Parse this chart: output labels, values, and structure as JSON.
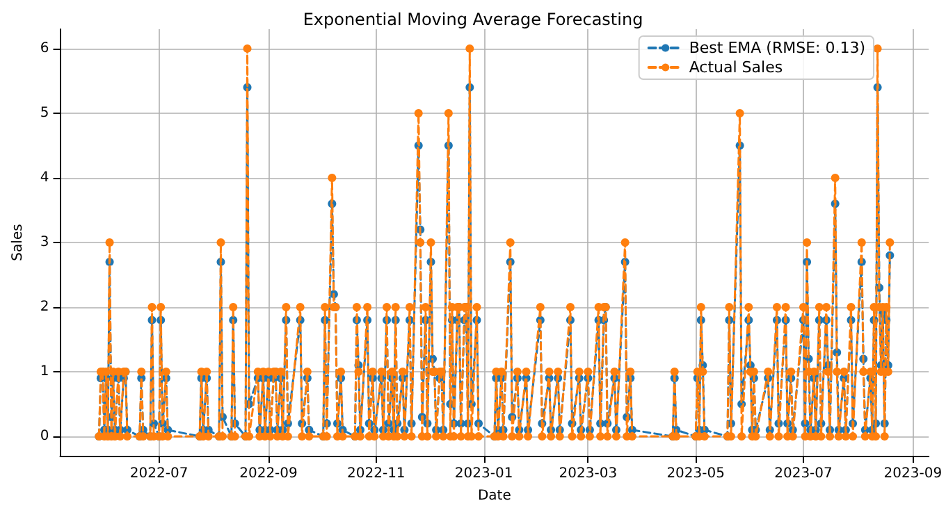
{
  "chart_data": {
    "type": "line",
    "title": "Exponential Moving Average Forecasting",
    "xlabel": "Date",
    "ylabel": "Sales",
    "x": [
      "2022-05-28",
      "2022-05-29",
      "2022-05-30",
      "2022-05-31",
      "2022-06-01",
      "2022-06-02",
      "2022-06-03",
      "2022-06-04",
      "2022-06-05",
      "2022-06-06",
      "2022-06-08",
      "2022-06-09",
      "2022-06-11",
      "2022-06-12",
      "2022-06-13",
      "2022-06-20",
      "2022-06-21",
      "2022-06-22",
      "2022-06-26",
      "2022-06-27",
      "2022-06-28",
      "2022-07-01",
      "2022-07-02",
      "2022-07-03",
      "2022-07-05",
      "2022-07-06",
      "2022-07-24",
      "2022-07-25",
      "2022-07-26",
      "2022-07-28",
      "2022-07-29",
      "2022-08-04",
      "2022-08-05",
      "2022-08-06",
      "2022-08-11",
      "2022-08-12",
      "2022-08-13",
      "2022-08-19",
      "2022-08-20",
      "2022-08-21",
      "2022-08-26",
      "2022-08-27",
      "2022-08-29",
      "2022-08-30",
      "2022-09-01",
      "2022-09-02",
      "2022-09-04",
      "2022-09-05",
      "2022-09-06",
      "2022-09-08",
      "2022-09-09",
      "2022-09-11",
      "2022-09-12",
      "2022-09-19",
      "2022-09-20",
      "2022-09-23",
      "2022-09-24",
      "2022-10-02",
      "2022-10-03",
      "2022-10-04",
      "2022-10-07",
      "2022-10-08",
      "2022-10-09",
      "2022-10-10",
      "2022-10-12",
      "2022-10-13",
      "2022-10-20",
      "2022-10-21",
      "2022-10-22",
      "2022-10-23",
      "2022-10-27",
      "2022-10-28",
      "2022-10-30",
      "2022-10-31",
      "2022-11-04",
      "2022-11-05",
      "2022-11-07",
      "2022-11-08",
      "2022-11-10",
      "2022-11-11",
      "2022-11-12",
      "2022-11-13",
      "2022-11-16",
      "2022-11-17",
      "2022-11-20",
      "2022-11-21",
      "2022-11-25",
      "2022-11-26",
      "2022-11-27",
      "2022-11-29",
      "2022-11-30",
      "2022-12-02",
      "2022-12-03",
      "2022-12-04",
      "2022-12-05",
      "2022-12-07",
      "2022-12-08",
      "2022-12-09",
      "2022-12-12",
      "2022-12-13",
      "2022-12-14",
      "2022-12-15",
      "2022-12-17",
      "2022-12-18",
      "2022-12-19",
      "2022-12-21",
      "2022-12-22",
      "2022-12-23",
      "2022-12-24",
      "2022-12-25",
      "2022-12-28",
      "2022-12-29",
      "2023-01-07",
      "2023-01-08",
      "2023-01-09",
      "2023-01-11",
      "2023-01-12",
      "2023-01-16",
      "2023-01-17",
      "2023-01-20",
      "2023-01-21",
      "2023-01-25",
      "2023-01-26",
      "2023-02-02",
      "2023-02-03",
      "2023-02-07",
      "2023-02-08",
      "2023-02-12",
      "2023-02-13",
      "2023-02-19",
      "2023-02-20",
      "2023-02-24",
      "2023-02-25",
      "2023-03-01",
      "2023-03-02",
      "2023-03-07",
      "2023-03-08",
      "2023-03-10",
      "2023-03-11",
      "2023-03-12",
      "2023-03-16",
      "2023-03-17",
      "2023-03-22",
      "2023-03-23",
      "2023-03-25",
      "2023-03-26",
      "2023-04-18",
      "2023-04-19",
      "2023-04-20",
      "2023-05-01",
      "2023-05-02",
      "2023-05-03",
      "2023-05-04",
      "2023-05-05",
      "2023-05-06",
      "2023-05-19",
      "2023-05-20",
      "2023-05-21",
      "2023-05-26",
      "2023-05-27",
      "2023-05-31",
      "2023-06-01",
      "2023-06-02",
      "2023-06-03",
      "2023-06-04",
      "2023-06-11",
      "2023-06-12",
      "2023-06-16",
      "2023-06-17",
      "2023-06-21",
      "2023-06-22",
      "2023-06-24",
      "2023-06-25",
      "2023-07-01",
      "2023-07-02",
      "2023-07-03",
      "2023-07-04",
      "2023-07-05",
      "2023-07-07",
      "2023-07-08",
      "2023-07-10",
      "2023-07-11",
      "2023-07-14",
      "2023-07-15",
      "2023-07-16",
      "2023-07-19",
      "2023-07-20",
      "2023-07-21",
      "2023-07-24",
      "2023-07-25",
      "2023-07-28",
      "2023-07-29",
      "2023-08-03",
      "2023-08-04",
      "2023-08-05",
      "2023-08-08",
      "2023-08-09",
      "2023-08-10",
      "2023-08-11",
      "2023-08-12",
      "2023-08-13",
      "2023-08-14",
      "2023-08-15",
      "2023-08-16",
      "2023-08-17",
      "2023-08-18",
      "2023-08-19"
    ],
    "series": [
      {
        "name": "Best EMA (RMSE: 0.13)",
        "color": "#1f77b4",
        "values": [
          0,
          0.9,
          1.0,
          0.1,
          0.9,
          0.1,
          2.7,
          0.3,
          0.9,
          0.1,
          0.9,
          0.1,
          0.9,
          1.0,
          0.1,
          0,
          0.9,
          0.1,
          0,
          1.8,
          0.2,
          0,
          1.8,
          0.2,
          0.9,
          0.1,
          0,
          0.9,
          0.1,
          0.9,
          0.1,
          0,
          2.7,
          0.3,
          0,
          1.8,
          0.2,
          0,
          5.4,
          0.5,
          0.9,
          0.1,
          0.9,
          0.1,
          0.9,
          0.1,
          0.9,
          1.0,
          0.1,
          0.9,
          0.1,
          1.8,
          0.2,
          1.8,
          0.2,
          0.9,
          0.1,
          0,
          1.8,
          0.2,
          3.6,
          2.2,
          2.0,
          0.2,
          0.9,
          0.1,
          0,
          1.8,
          1.1,
          0.1,
          1.8,
          0.2,
          0.9,
          0.1,
          0.9,
          0.1,
          1.8,
          0.2,
          0.9,
          0.1,
          1.8,
          0.2,
          0.9,
          0.1,
          1.8,
          0.2,
          4.5,
          3.2,
          0.3,
          1.8,
          0.2,
          2.7,
          1.2,
          1.0,
          0.1,
          0.9,
          1.0,
          0.1,
          4.5,
          0.5,
          1.8,
          0.2,
          1.8,
          2.0,
          0.2,
          1.8,
          2.0,
          0.2,
          5.4,
          0.5,
          1.8,
          0.2,
          0,
          0.9,
          0.1,
          0.9,
          0.1,
          2.7,
          0.3,
          0.9,
          0.1,
          0.9,
          0.1,
          1.8,
          0.2,
          0.9,
          0.1,
          0.9,
          0.1,
          1.8,
          0.2,
          0.9,
          0.1,
          0.9,
          0.1,
          1.8,
          0.2,
          1.8,
          2.0,
          0.2,
          0.9,
          0.1,
          2.7,
          0.3,
          0.9,
          0.1,
          0,
          0.9,
          0.1,
          0,
          0.9,
          0.1,
          1.8,
          1.1,
          0.1,
          0,
          1.8,
          0.2,
          4.5,
          0.5,
          1.8,
          1.1,
          0.1,
          0.9,
          0.1,
          0.9,
          0.1,
          1.8,
          0.2,
          1.8,
          0.2,
          0.9,
          0.1,
          1.8,
          0.2,
          2.7,
          1.2,
          0.1,
          0.9,
          0.1,
          1.8,
          0.2,
          1.8,
          1.1,
          0.1,
          3.6,
          1.3,
          0.1,
          0.9,
          0.1,
          1.8,
          0.2,
          2.7,
          1.2,
          0.1,
          0.9,
          0.1,
          1.8,
          0.2,
          5.4,
          2.3,
          1.1,
          1.9,
          0.2,
          1.8,
          1.1,
          2.8
        ]
      },
      {
        "name": "Actual Sales",
        "color": "#ff7f0e",
        "values": [
          0,
          1,
          1,
          0,
          1,
          0,
          3,
          0,
          1,
          0,
          1,
          0,
          1,
          1,
          0,
          0,
          1,
          0,
          0,
          2,
          0,
          0,
          2,
          0,
          1,
          0,
          0,
          1,
          0,
          1,
          0,
          0,
          3,
          0,
          0,
          2,
          0,
          0,
          6,
          0,
          1,
          0,
          1,
          0,
          1,
          0,
          1,
          1,
          0,
          1,
          0,
          2,
          0,
          2,
          0,
          1,
          0,
          0,
          2,
          0,
          4,
          2,
          2,
          0,
          1,
          0,
          0,
          2,
          1,
          0,
          2,
          0,
          1,
          0,
          1,
          0,
          2,
          0,
          1,
          0,
          2,
          0,
          1,
          0,
          2,
          0,
          5,
          3,
          0,
          2,
          0,
          3,
          1,
          1,
          0,
          1,
          1,
          0,
          5,
          0,
          2,
          0,
          2,
          2,
          0,
          2,
          2,
          0,
          6,
          0,
          2,
          0,
          0,
          1,
          0,
          1,
          0,
          3,
          0,
          1,
          0,
          1,
          0,
          2,
          0,
          1,
          0,
          1,
          0,
          2,
          0,
          1,
          0,
          1,
          0,
          2,
          0,
          2,
          2,
          0,
          1,
          0,
          3,
          0,
          1,
          0,
          0,
          1,
          0,
          0,
          1,
          0,
          2,
          1,
          0,
          0,
          2,
          0,
          5,
          0,
          2,
          1,
          0,
          1,
          0,
          1,
          0,
          2,
          0,
          2,
          0,
          1,
          0,
          2,
          0,
          3,
          1,
          0,
          1,
          0,
          2,
          0,
          2,
          1,
          0,
          4,
          1,
          0,
          1,
          0,
          2,
          0,
          3,
          1,
          0,
          1,
          0,
          2,
          0,
          6,
          2,
          1,
          2,
          0,
          2,
          1,
          3
        ]
      }
    ],
    "xlim": [
      "2022-05-06",
      "2023-09-10"
    ],
    "xticks": [
      {
        "value": "2022-07-01",
        "label": "2022-07"
      },
      {
        "value": "2022-09-01",
        "label": "2022-09"
      },
      {
        "value": "2022-11-01",
        "label": "2022-11"
      },
      {
        "value": "2023-01-01",
        "label": "2023-01"
      },
      {
        "value": "2023-03-01",
        "label": "2023-03"
      },
      {
        "value": "2023-05-01",
        "label": "2023-05"
      },
      {
        "value": "2023-07-01",
        "label": "2023-07"
      },
      {
        "value": "2023-09-01",
        "label": "2023-09"
      }
    ],
    "ylim": [
      -0.3,
      6.3
    ],
    "yticks": [
      0,
      1,
      2,
      3,
      4,
      5,
      6
    ],
    "grid": true,
    "legend": "top right",
    "marker": "circle",
    "line_style": "dashed"
  }
}
